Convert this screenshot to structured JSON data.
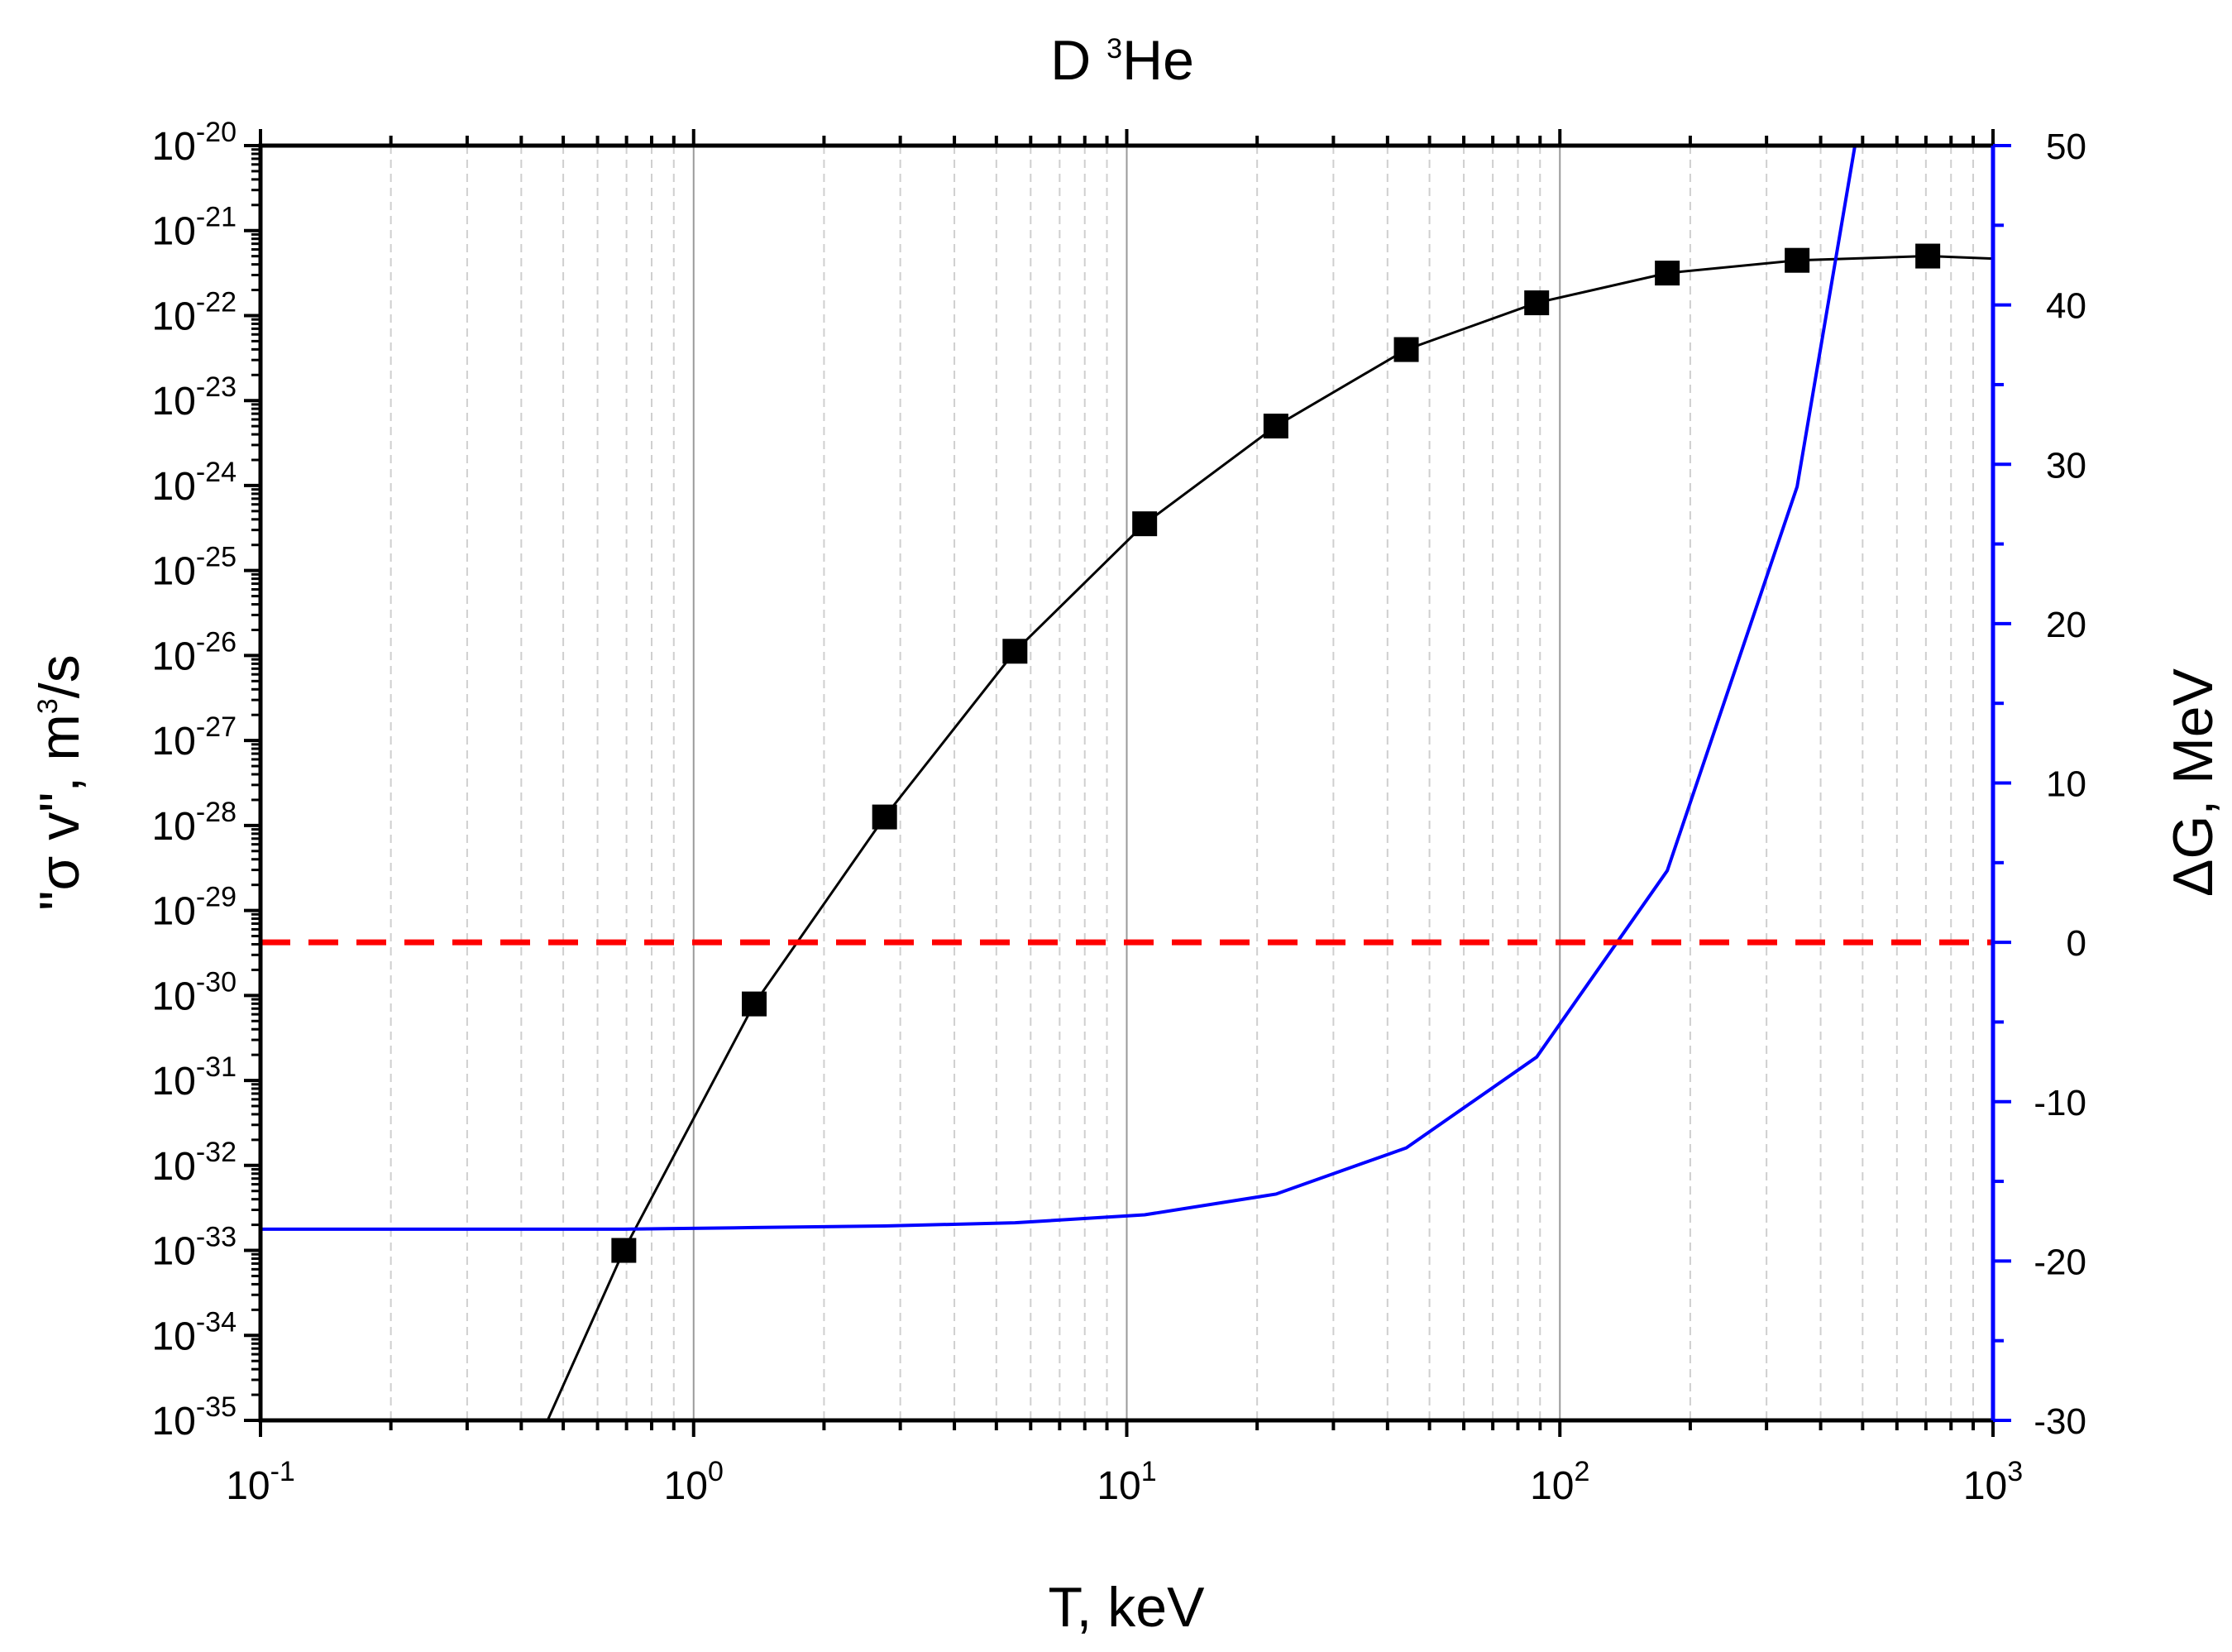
{
  "chart_data": {
    "type": "line",
    "title": {
      "base": "D ",
      "sup": "3",
      "rest": "He"
    },
    "xlabel": "T, keV",
    "xscale": "log",
    "xlim": [
      0.1,
      1000
    ],
    "x_ticks": [
      {
        "base": "10",
        "exp": "-1",
        "value": 0.1
      },
      {
        "base": "10",
        "exp": "0",
        "value": 1
      },
      {
        "base": "10",
        "exp": "1",
        "value": 10
      },
      {
        "base": "10",
        "exp": "2",
        "value": 100
      },
      {
        "base": "10",
        "exp": "3",
        "value": 1000
      }
    ],
    "y_left": {
      "label": {
        "pre": "\"σ v\", m",
        "sup": "3",
        "post": "/s"
      },
      "scale": "log",
      "ylim": [
        1e-35,
        1e-20
      ],
      "ticks": [
        {
          "base": "10",
          "exp": "-20",
          "value": -20
        },
        {
          "base": "10",
          "exp": "-21",
          "value": -21
        },
        {
          "base": "10",
          "exp": "-22",
          "value": -22
        },
        {
          "base": "10",
          "exp": "-23",
          "value": -23
        },
        {
          "base": "10",
          "exp": "-24",
          "value": -24
        },
        {
          "base": "10",
          "exp": "-25",
          "value": -25
        },
        {
          "base": "10",
          "exp": "-26",
          "value": -26
        },
        {
          "base": "10",
          "exp": "-27",
          "value": -27
        },
        {
          "base": "10",
          "exp": "-28",
          "value": -28
        },
        {
          "base": "10",
          "exp": "-29",
          "value": -29
        },
        {
          "base": "10",
          "exp": "-30",
          "value": -30
        },
        {
          "base": "10",
          "exp": "-31",
          "value": -31
        },
        {
          "base": "10",
          "exp": "-32",
          "value": -32
        },
        {
          "base": "10",
          "exp": "-33",
          "value": -33
        },
        {
          "base": "10",
          "exp": "-34",
          "value": -34
        },
        {
          "base": "10",
          "exp": "-35",
          "value": -35
        }
      ]
    },
    "y_right": {
      "label": "ΔG, MeV",
      "scale": "linear",
      "ylim": [
        -30,
        50
      ],
      "ticks": [
        "-30",
        "-20",
        "-10",
        "0",
        "10",
        "20",
        "30",
        "40",
        "50"
      ],
      "color": "#0000ff"
    },
    "series": [
      {
        "name": "sigma_v",
        "axis": "left",
        "color": "#000000",
        "marker": "square",
        "x": [
          0.46,
          0.69,
          1.38,
          2.76,
          5.52,
          11.0,
          22.1,
          44.2,
          88.4,
          177,
          353,
          707,
          1000
        ],
        "log10_y": [
          -35.0,
          -33.0,
          -30.1,
          -27.9,
          -25.95,
          -24.45,
          -23.3,
          -22.4,
          -21.85,
          -21.5,
          -21.35,
          -21.3,
          -21.33
        ],
        "marker_indices": [
          1,
          2,
          3,
          4,
          5,
          6,
          7,
          8,
          9,
          10,
          11
        ]
      },
      {
        "name": "delta_G",
        "axis": "right",
        "color": "#0000ff",
        "x": [
          0.1,
          0.69,
          1.38,
          2.76,
          5.52,
          11.0,
          22.1,
          44.2,
          88.4,
          177,
          353,
          480
        ],
        "y": [
          -18.0,
          -18.0,
          -17.9,
          -17.8,
          -17.6,
          -17.1,
          -15.8,
          -12.9,
          -7.2,
          4.5,
          28.6,
          50
        ]
      },
      {
        "name": "zero_line",
        "axis": "right",
        "color": "#ff0000",
        "style": "dashed",
        "x": [
          0.1,
          1000
        ],
        "y": [
          0,
          0
        ]
      }
    ],
    "grid": true
  }
}
